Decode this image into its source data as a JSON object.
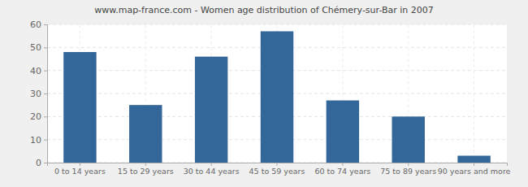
{
  "chart_data": {
    "type": "bar",
    "title": "www.map-france.com - Women age distribution of Chémery-sur-Bar in 2007",
    "categories": [
      "0 to 14 years",
      "15 to 29 years",
      "30 to 44 years",
      "45 to 59 years",
      "60 to 74 years",
      "75 to 89 years",
      "90 years and more"
    ],
    "values": [
      48,
      25,
      46,
      57,
      27,
      20,
      3
    ],
    "color": "#336699",
    "ylim": [
      0,
      60
    ],
    "yticks": [
      0,
      10,
      20,
      30,
      40,
      50,
      60
    ],
    "grid": true
  }
}
